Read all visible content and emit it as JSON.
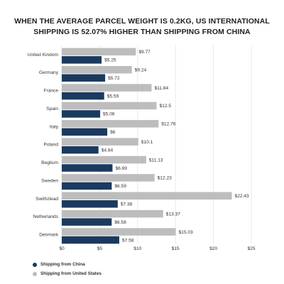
{
  "title": "WHEN THE AVERAGE PARCEL WEIGHT IS 0.2KG, US INTERNATIONAL SHIPPING IS 52.07% HIGHER THAN SHIPPING FROM CHINA",
  "colors": {
    "china": "#1b3a5e",
    "us": "#bdbdbd",
    "grid": "#e3e3e3"
  },
  "legend": {
    "china": "Shipping from China",
    "us": "Shipping from United States"
  },
  "chart_data": {
    "type": "bar",
    "orientation": "horizontal",
    "title": "WHEN THE AVERAGE PARCEL WEIGHT IS 0.2KG, US INTERNATIONAL SHIPPING IS 52.07% HIGHER THAN SHIPPING FROM CHINA",
    "categories": [
      "United Kindom",
      "Germany",
      "France",
      "Spain",
      "Italy",
      "Poland",
      "Beglium",
      "Sweden",
      "Swithzlead",
      "Netherlands",
      "Denmark"
    ],
    "series": [
      {
        "name": "Shipping from United States",
        "values": [
          9.77,
          9.24,
          11.84,
          12.5,
          12.76,
          10.1,
          11.13,
          12.23,
          22.43,
          13.37,
          15.03
        ],
        "labels": [
          "$9.77",
          "$9.24",
          "$11.84",
          "$12.5",
          "$12.76",
          "$10.1",
          "$11.13",
          "$12.23",
          "$22.43",
          "$13.37",
          "$15.03"
        ]
      },
      {
        "name": "Shipping from China",
        "values": [
          5.25,
          5.72,
          5.59,
          5.06,
          6,
          4.84,
          6.69,
          6.59,
          7.38,
          6.58,
          7.58
        ],
        "labels": [
          "$5.25",
          "$5.72",
          "$5.59",
          "$5.06",
          "$6",
          "$4.84",
          "$6.69",
          "$6.59",
          "$7.38",
          "$6.58",
          "$7.58"
        ]
      }
    ],
    "xlim": [
      0,
      25
    ],
    "xticks": [
      0,
      5,
      10,
      15,
      20,
      25
    ],
    "xtick_labels": [
      "$0",
      "$5",
      "$10",
      "$15",
      "$20",
      "$25"
    ],
    "grid": true,
    "legend_position": "bottom-left"
  }
}
